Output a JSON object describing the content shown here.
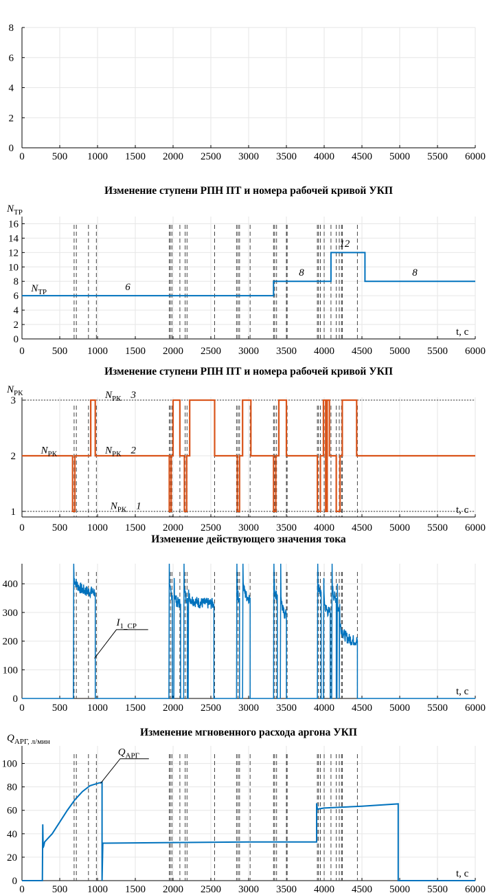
{
  "vertical_lines": [
    690,
    720,
    880,
    985,
    1950,
    1965,
    1985,
    2090,
    2160,
    2185,
    2550,
    2840,
    2860,
    2880,
    3020,
    3330,
    3345,
    3370,
    3500,
    3510,
    3910,
    3925,
    3950,
    4000,
    4090,
    4160,
    4200,
    4230,
    4240,
    4440
  ],
  "chart_data": [
    {
      "id": "p0",
      "type": "line",
      "title": "",
      "xlabel": "",
      "ylabel": "",
      "xlim": [
        0,
        6000
      ],
      "ylim": [
        0,
        8
      ],
      "xticks": [
        0,
        500,
        1000,
        1500,
        2000,
        2500,
        3000,
        3500,
        4000,
        4500,
        5000,
        5500,
        6000
      ],
      "yticks": [
        0,
        2,
        4,
        6,
        8
      ],
      "series": []
    },
    {
      "id": "p1",
      "type": "line",
      "title": "Изменение ступени РПН ПТ и номера рабочей кривой УКП",
      "ylabel_main": "N",
      "ylabel_sub": "ТР",
      "xlabel": "t, c",
      "xlim": [
        0,
        6000
      ],
      "ylim": [
        0,
        17
      ],
      "xticks": [
        0,
        500,
        1000,
        1500,
        2000,
        2500,
        3000,
        3500,
        4000,
        4500,
        5000,
        5500,
        6000
      ],
      "yticks": [
        0,
        2,
        4,
        6,
        8,
        10,
        12,
        14,
        16
      ],
      "series": [
        {
          "name": "N_ТР",
          "color": "#0072bd",
          "x": [
            0,
            3330,
            3330,
            4090,
            4090,
            4540,
            4540,
            6000
          ],
          "y": [
            6,
            6,
            8,
            8,
            12,
            12,
            8,
            8
          ]
        }
      ],
      "annotations": [
        {
          "text": "6",
          "x": 1400,
          "y": 6.8
        },
        {
          "text": "8",
          "x": 3700,
          "y": 8.8
        },
        {
          "text": "12",
          "x": 4270,
          "y": 12.8
        },
        {
          "text": "8",
          "x": 5200,
          "y": 8.8
        }
      ],
      "legend_main": "N",
      "legend_sub": "ТР"
    },
    {
      "id": "p2",
      "type": "line",
      "title": "Изменение ступени РПН ПТ и номера рабочей кривой УКП",
      "ylabel_main": "N",
      "ylabel_sub": "РК",
      "xlabel": "t, c",
      "xlim": [
        0,
        6000
      ],
      "ylim": [
        0.9,
        3.05
      ],
      "xticks": [
        0,
        500,
        1000,
        1500,
        2000,
        2500,
        3000,
        3500,
        4000,
        4500,
        5000,
        5500,
        6000
      ],
      "yticks": [
        1,
        2,
        3
      ],
      "reference_levels": [
        1,
        3
      ],
      "series": [
        {
          "name": "N_РК",
          "color": "#d95319",
          "x": [
            0,
            670,
            670,
            700,
            700,
            910,
            910,
            970,
            970,
            1950,
            1950,
            1975,
            1975,
            2000,
            2000,
            2090,
            2090,
            2150,
            2150,
            2180,
            2180,
            2220,
            2220,
            2550,
            2550,
            2850,
            2850,
            2880,
            2880,
            2920,
            2920,
            3030,
            3030,
            3330,
            3330,
            3360,
            3360,
            3400,
            3400,
            3500,
            3500,
            3910,
            3910,
            3950,
            3950,
            3990,
            3990,
            4020,
            4020,
            4040,
            4040,
            4070,
            4070,
            4160,
            4160,
            4210,
            4210,
            4240,
            4240,
            4430,
            4430,
            6000
          ],
          "y": [
            2,
            2,
            1,
            1,
            2,
            2,
            3,
            3,
            2,
            2,
            1,
            1,
            2,
            2,
            3,
            3,
            2,
            2,
            1,
            1,
            2,
            2,
            3,
            3,
            2,
            2,
            1,
            1,
            2,
            2,
            3,
            3,
            2,
            2,
            1,
            1,
            2,
            2,
            3,
            3,
            2,
            2,
            1,
            1,
            2,
            2,
            3,
            3,
            1,
            1,
            3,
            3,
            2,
            2,
            1,
            1,
            2,
            2,
            3,
            3,
            2,
            2
          ]
        }
      ],
      "level_labels": [
        {
          "main": "N",
          "sub": "РК",
          "num": "3",
          "x": 1100,
          "y": 3.04
        },
        {
          "main": "N",
          "sub": "РК",
          "num": "2",
          "x": 1100,
          "y": 2.04
        },
        {
          "main": "N",
          "sub": "РК",
          "num": "",
          "x": 250,
          "y": 2.04
        },
        {
          "main": "N",
          "sub": "РК",
          "num": "1",
          "x": 1170,
          "y": 1.04
        }
      ]
    },
    {
      "id": "p3",
      "type": "line",
      "title": "Изменение действующего значения тока",
      "ylabel": "",
      "xlabel": "t, c",
      "xlim": [
        0,
        6000
      ],
      "ylim": [
        0,
        470
      ],
      "xticks": [
        0,
        500,
        1000,
        1500,
        2000,
        2500,
        3000,
        3500,
        4000,
        4500,
        5000,
        5500,
        6000
      ],
      "yticks": [
        0,
        100,
        200,
        300,
        400
      ],
      "pulses": [
        {
          "start": 680,
          "end": 970,
          "peak": 470,
          "plateau": 370
        },
        {
          "start": 1945,
          "end": 1990,
          "peak": 470,
          "plateau": 360
        },
        {
          "start": 2010,
          "end": 2100,
          "peak": 420,
          "plateau": 330
        },
        {
          "start": 2140,
          "end": 2190,
          "peak": 470,
          "plateau": 350
        },
        {
          "start": 2200,
          "end": 2540,
          "peak": 380,
          "plateau": 330
        },
        {
          "start": 2840,
          "end": 2880,
          "peak": 470,
          "plateau": 350
        },
        {
          "start": 2920,
          "end": 3020,
          "peak": 470,
          "plateau": 350
        },
        {
          "start": 3330,
          "end": 3380,
          "peak": 470,
          "plateau": 360
        },
        {
          "start": 3420,
          "end": 3500,
          "peak": 470,
          "plateau": 290
        },
        {
          "start": 3910,
          "end": 3960,
          "peak": 470,
          "plateau": 370
        },
        {
          "start": 3990,
          "end": 4080,
          "peak": 420,
          "plateau": 300
        },
        {
          "start": 4100,
          "end": 4160,
          "peak": 470,
          "plateau": 350
        },
        {
          "start": 4170,
          "end": 4200,
          "peak": 400,
          "plateau": 310
        },
        {
          "start": 4200,
          "end": 4440,
          "peak": 330,
          "plateau": 200
        }
      ],
      "series_name_main": "I",
      "series_name_sub": "1_СР",
      "color": "#0072bd"
    },
    {
      "id": "p4",
      "type": "line",
      "title": "Изменение мгновенного расхода аргона УКП",
      "ylabel_main": "Q",
      "ylabel_sub": "АРГ, л/мин",
      "xlabel": "t, c",
      "xlim": [
        0,
        6000
      ],
      "ylim": [
        0,
        115
      ],
      "xticks": [
        0,
        500,
        1000,
        1500,
        2000,
        2500,
        3000,
        3500,
        4000,
        4500,
        5000,
        5500,
        6000
      ],
      "yticks": [
        0,
        20,
        40,
        60,
        80,
        100
      ],
      "series": [
        {
          "name": "Q_АРГ",
          "color": "#0072bd",
          "x": [
            0,
            270,
            275,
            280,
            290,
            300,
            400,
            500,
            600,
            700,
            800,
            900,
            1000,
            1060,
            1060,
            1070,
            1100,
            2000,
            3000,
            3900,
            3900,
            3910,
            4000,
            4500,
            4980,
            4980,
            6000
          ],
          "y": [
            0,
            0,
            48,
            28,
            30,
            33,
            40,
            50,
            60,
            69,
            76,
            81,
            83,
            84,
            0,
            32,
            32,
            32.5,
            33,
            33,
            66,
            61,
            62,
            63.5,
            65.5,
            0,
            0
          ]
        }
      ],
      "legend_main": "Q",
      "legend_sub": "АРГ"
    }
  ]
}
